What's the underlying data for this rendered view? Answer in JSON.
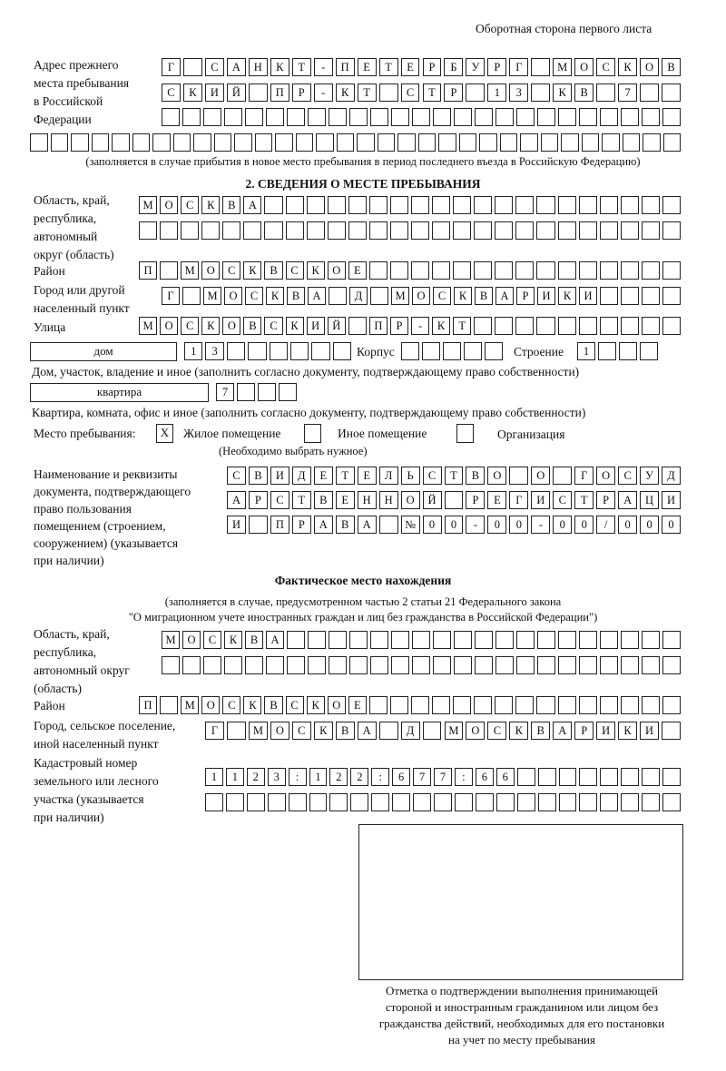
{
  "header": {
    "page_side": "Оборотная сторона первого листа"
  },
  "prev_address": {
    "label": [
      "Адрес прежнего",
      "места пребывания",
      "в Российской",
      "Федерации"
    ],
    "rows": [
      "Г САНКТ-ПЕТЕРБУРГ МОСКОВ",
      "СКИЙ ПР-КТ СТР 13 КВ 7  ",
      "                         ",
      "                                "
    ],
    "note": "(заполняется в случае прибытия в новое место пребывания в период последнего въезда в Российскую Федерацию)"
  },
  "section2": {
    "title": "2. СВЕДЕНИЯ О МЕСТЕ ПРЕБЫВАНИЯ",
    "region_label": [
      "Область, край,",
      "республика,",
      "автономный",
      "округ (область)"
    ],
    "region_rows": [
      "МОСКВА                    ",
      "                          "
    ],
    "district_label": "Район",
    "district_row": "П МОСКВСКОЕ               ",
    "city_label": [
      "Город или другой",
      "населенный пункт"
    ],
    "city_row": "Г МОСКВА Д МОСКВАРИКИ    ",
    "street_label": "Улица",
    "street_row": "МОСКОВСКИЙ ПР-КТ          ",
    "house_type": "дом",
    "house_row": "13      ",
    "korpus_label": "Корпус",
    "korpus_row": "     ",
    "building_label": "Строение",
    "building_row": "1   ",
    "house_note": "Дом, участок, владение и иное (заполнить согласно документу, подтверждающему право собственности)",
    "apt_type": "квартира",
    "apt_row": "7   ",
    "apt_note": "Квартира, комната, офис и иное (заполнить согласно документу, подтверждающему право собственности)",
    "stay_label": "Место пребывания:",
    "stay_options": [
      {
        "mark": "X",
        "label": "Жилое помещение",
        "checked": true
      },
      {
        "mark": "",
        "label": "Иное помещение",
        "checked": false
      },
      {
        "mark": "",
        "label": "Организация",
        "checked": false
      }
    ],
    "stay_note": "(Необходимо выбрать нужное)",
    "doc_label": [
      "Наименование и реквизиты",
      "документа, подтверждающего",
      "право пользования",
      "помещением (строением,",
      "сооружением) (указывается",
      "при наличии)"
    ],
    "doc_rows": [
      "СВИДЕТЕЛЬСТВО О ГОСУД",
      "АРСТВЕННОЙ РЕГИСТРАЦИ",
      "И ПРАВА №00-00-00/000"
    ]
  },
  "actual": {
    "title": "Фактическое место нахождения",
    "note": [
      "(заполняется в случае, предусмотренном частью 2 статьи 21 Федерального закона",
      "\"О миграционном учете иностранных граждан и лиц без гражданства в Российской Федерации\")"
    ],
    "region_label": [
      "Область, край,",
      "республика,",
      "автономный округ",
      "(область)"
    ],
    "region_rows": [
      "МОСКВА                   ",
      "                         "
    ],
    "district_label": "Район",
    "district_row": "П МОСКВСКОЕ               ",
    "city_label": [
      "Город, сельское поселение,",
      "иной населенный пункт"
    ],
    "city_row": "Г МОСКВА Д МОСКВАРИКИ ",
    "cadastre_label": [
      "Кадастровый номер",
      "земельного или лесного",
      "участка (указывается",
      "при наличии)"
    ],
    "cadastre_rows": [
      "1123:122:677:66        ",
      "                       "
    ]
  },
  "confirmation": {
    "caption": [
      "Отметка о подтверждении выполнения принимающей",
      "стороной и иностранным гражданином или лицом без",
      "гражданства действий, необходимых для его постановки",
      "на учет по месту пребывания"
    ]
  }
}
